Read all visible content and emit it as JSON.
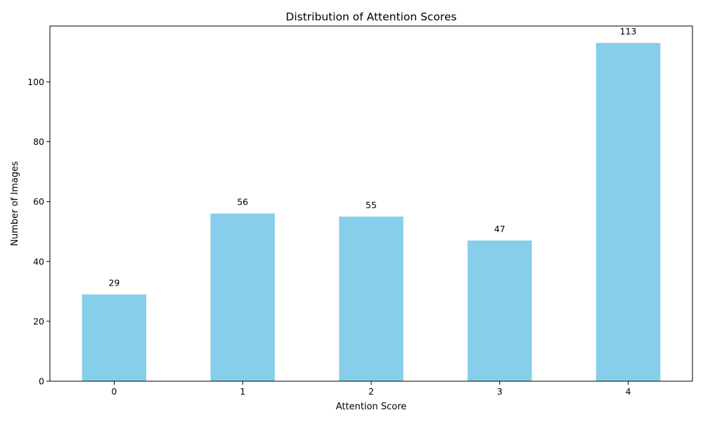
{
  "chart_data": {
    "type": "bar",
    "title": "Distribution of Attention Scores",
    "xlabel": "Attention Score",
    "ylabel": "Number of Images",
    "categories": [
      "0",
      "1",
      "2",
      "3",
      "4"
    ],
    "values": [
      29,
      56,
      55,
      47,
      113
    ],
    "data_labels": [
      "29",
      "56",
      "55",
      "47",
      "113"
    ],
    "ylim": [
      0,
      118.65
    ],
    "yticks": [
      0,
      20,
      40,
      60,
      80,
      100
    ],
    "ytick_labels": [
      "0",
      "20",
      "40",
      "60",
      "80",
      "100"
    ],
    "bar_color": "#87CEEB",
    "grid": false,
    "legend": "none"
  }
}
